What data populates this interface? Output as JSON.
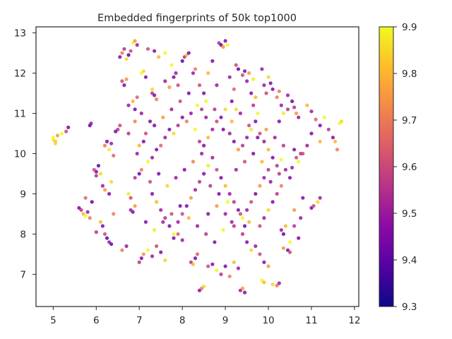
{
  "chart_data": {
    "type": "scatter",
    "title": "Embedded fingerprints of 50k top1000",
    "xlabel": "",
    "ylabel": "",
    "xlim": [
      4.6,
      12.1
    ],
    "ylim": [
      6.2,
      13.15
    ],
    "xticks": [
      5,
      6,
      7,
      8,
      9,
      10,
      11,
      12
    ],
    "yticks": [
      7,
      8,
      9,
      10,
      11,
      12,
      13
    ],
    "grid": false,
    "legend": "none",
    "colorbar": {
      "cmap": "plasma",
      "range": [
        9.3,
        9.9
      ],
      "ticks": [
        "9.3",
        "9.4",
        "9.5",
        "9.6",
        "9.7",
        "9.8",
        "9.9"
      ]
    },
    "points": [
      [
        5.0,
        10.35,
        9.88
      ],
      [
        5.05,
        10.3,
        9.82
      ],
      [
        5.1,
        10.45,
        9.75
      ],
      [
        5.2,
        10.5,
        9.9
      ],
      [
        5.3,
        10.55,
        9.6
      ],
      [
        5.35,
        10.65,
        9.45
      ],
      [
        5.0,
        10.4,
        9.9
      ],
      [
        5.05,
        10.25,
        9.85
      ],
      [
        5.65,
        8.6,
        9.55
      ],
      [
        5.7,
        8.5,
        9.8
      ],
      [
        5.75,
        8.45,
        9.9
      ],
      [
        5.8,
        8.55,
        9.5
      ],
      [
        5.85,
        8.4,
        9.7
      ],
      [
        5.9,
        8.8,
        9.4
      ],
      [
        5.75,
        8.9,
        9.65
      ],
      [
        5.6,
        8.65,
        9.45
      ],
      [
        5.85,
        10.7,
        9.4
      ],
      [
        5.88,
        10.75,
        9.5
      ],
      [
        6.0,
        9.55,
        9.45
      ],
      [
        5.95,
        9.6,
        9.6
      ],
      [
        6.05,
        9.7,
        9.4
      ],
      [
        6.1,
        9.5,
        9.85
      ],
      [
        6.0,
        9.45,
        9.55
      ],
      [
        6.2,
        10.2,
        9.7
      ],
      [
        6.25,
        10.3,
        9.45
      ],
      [
        6.3,
        10.1,
        9.88
      ],
      [
        6.35,
        10.25,
        9.5
      ],
      [
        6.4,
        9.95,
        9.65
      ],
      [
        6.45,
        10.55,
        9.42
      ],
      [
        6.5,
        10.6,
        9.55
      ],
      [
        6.55,
        10.7,
        9.6
      ],
      [
        6.15,
        9.2,
        9.5
      ],
      [
        6.2,
        9.1,
        9.75
      ],
      [
        6.3,
        9.0,
        9.45
      ],
      [
        6.35,
        9.3,
        9.85
      ],
      [
        6.1,
        8.3,
        9.8
      ],
      [
        6.15,
        8.2,
        9.45
      ],
      [
        6.2,
        8.0,
        9.6
      ],
      [
        6.25,
        7.9,
        9.4
      ],
      [
        6.3,
        7.8,
        9.5
      ],
      [
        6.35,
        7.75,
        9.42
      ],
      [
        6.4,
        8.5,
        9.7
      ],
      [
        6.0,
        8.05,
        9.55
      ],
      [
        6.55,
        12.4,
        9.45
      ],
      [
        6.6,
        12.5,
        9.7
      ],
      [
        6.65,
        12.6,
        9.55
      ],
      [
        6.7,
        12.35,
        9.85
      ],
      [
        6.75,
        12.45,
        9.4
      ],
      [
        6.8,
        12.55,
        9.6
      ],
      [
        6.6,
        11.8,
        9.6
      ],
      [
        6.65,
        11.7,
        9.45
      ],
      [
        6.7,
        11.85,
        9.75
      ],
      [
        6.75,
        11.2,
        9.5
      ],
      [
        6.85,
        11.3,
        9.8
      ],
      [
        6.9,
        11.1,
        9.42
      ],
      [
        6.95,
        11.4,
        9.65
      ],
      [
        6.85,
        12.75,
        9.9
      ],
      [
        6.9,
        12.8,
        9.75
      ],
      [
        6.95,
        12.7,
        9.5
      ],
      [
        7.1,
        12.05,
        9.85
      ],
      [
        7.05,
        12.0,
        9.9
      ],
      [
        7.15,
        11.9,
        9.45
      ],
      [
        7.3,
        11.5,
        9.55
      ],
      [
        7.35,
        11.45,
        9.45
      ],
      [
        7.4,
        11.35,
        9.7
      ],
      [
        7.3,
        11.6,
        9.85
      ],
      [
        7.2,
        12.6,
        9.6
      ],
      [
        7.35,
        12.55,
        9.45
      ],
      [
        7.45,
        12.4,
        9.8
      ],
      [
        7.6,
        12.5,
        9.9
      ],
      [
        7.6,
        11.8,
        9.5
      ],
      [
        7.7,
        11.65,
        9.75
      ],
      [
        7.8,
        11.9,
        9.45
      ],
      [
        7.9,
        11.7,
        9.6
      ],
      [
        7.75,
        12.2,
        9.9
      ],
      [
        7.85,
        12.0,
        9.5
      ],
      [
        8.0,
        12.3,
        9.4
      ],
      [
        8.05,
        12.4,
        9.55
      ],
      [
        8.1,
        12.45,
        9.8
      ],
      [
        8.15,
        12.5,
        9.45
      ],
      [
        8.3,
        12.1,
        9.7
      ],
      [
        8.25,
        12.0,
        9.5
      ],
      [
        8.4,
        11.7,
        9.6
      ],
      [
        8.5,
        11.5,
        9.45
      ],
      [
        8.55,
        11.3,
        9.9
      ],
      [
        8.45,
        11.1,
        9.55
      ],
      [
        8.7,
        12.3,
        9.45
      ],
      [
        8.6,
        12.0,
        9.8
      ],
      [
        8.8,
        11.7,
        9.5
      ],
      [
        8.85,
        12.75,
        9.55
      ],
      [
        8.9,
        12.7,
        9.42
      ],
      [
        8.95,
        12.65,
        9.75
      ],
      [
        9.0,
        12.8,
        9.45
      ],
      [
        9.05,
        12.7,
        9.9
      ],
      [
        9.1,
        11.9,
        9.5
      ],
      [
        9.2,
        11.6,
        9.65
      ],
      [
        9.15,
        11.3,
        9.45
      ],
      [
        9.25,
        11.1,
        9.85
      ],
      [
        9.3,
        12.1,
        9.4
      ],
      [
        9.4,
        11.95,
        9.6
      ],
      [
        9.5,
        11.8,
        9.5
      ],
      [
        9.55,
        12.0,
        9.75
      ],
      [
        9.6,
        11.5,
        9.45
      ],
      [
        9.7,
        11.4,
        9.8
      ],
      [
        9.65,
        11.2,
        9.55
      ],
      [
        9.75,
        11.0,
        9.9
      ],
      [
        9.9,
        11.7,
        9.5
      ],
      [
        9.95,
        11.5,
        9.6
      ],
      [
        10.0,
        11.9,
        9.85
      ],
      [
        10.1,
        11.6,
        9.45
      ],
      [
        10.2,
        11.4,
        9.7
      ],
      [
        10.3,
        11.2,
        9.5
      ],
      [
        10.35,
        11.0,
        9.88
      ],
      [
        10.25,
        10.8,
        9.45
      ],
      [
        10.45,
        11.1,
        9.55
      ],
      [
        10.55,
        11.3,
        9.42
      ],
      [
        10.65,
        11.0,
        9.75
      ],
      [
        10.7,
        10.9,
        9.5
      ],
      [
        10.9,
        11.2,
        9.8
      ],
      [
        11.0,
        11.05,
        9.5
      ],
      [
        11.1,
        10.85,
        9.65
      ],
      [
        11.2,
        10.7,
        9.45
      ],
      [
        11.3,
        10.9,
        9.9
      ],
      [
        11.4,
        10.6,
        9.55
      ],
      [
        11.5,
        10.4,
        9.45
      ],
      [
        11.55,
        10.3,
        9.8
      ],
      [
        11.6,
        10.1,
        9.7
      ],
      [
        11.65,
        10.75,
        9.9
      ],
      [
        11.7,
        10.8,
        9.85
      ],
      [
        10.6,
        10.1,
        9.45
      ],
      [
        10.65,
        9.9,
        9.6
      ],
      [
        10.7,
        9.8,
        9.9
      ],
      [
        10.55,
        9.65,
        9.5
      ],
      [
        10.75,
        10.0,
        9.55
      ],
      [
        11.0,
        8.65,
        9.45
      ],
      [
        11.05,
        8.7,
        9.6
      ],
      [
        11.15,
        8.8,
        9.85
      ],
      [
        11.2,
        8.9,
        9.5
      ],
      [
        10.3,
        8.1,
        9.5
      ],
      [
        10.35,
        8.0,
        9.42
      ],
      [
        10.4,
        8.2,
        9.8
      ],
      [
        10.45,
        7.6,
        9.45
      ],
      [
        10.5,
        7.55,
        9.6
      ],
      [
        10.35,
        7.65,
        9.75
      ],
      [
        10.1,
        6.75,
        9.85
      ],
      [
        10.2,
        6.72,
        9.7
      ],
      [
        10.25,
        6.78,
        9.5
      ],
      [
        9.85,
        6.85,
        9.9
      ],
      [
        9.9,
        6.8,
        9.8
      ],
      [
        9.35,
        6.6,
        9.5
      ],
      [
        9.4,
        6.65,
        9.75
      ],
      [
        9.45,
        6.55,
        9.45
      ],
      [
        8.4,
        6.6,
        9.45
      ],
      [
        8.45,
        6.65,
        9.7
      ],
      [
        8.5,
        6.7,
        9.85
      ],
      [
        8.2,
        7.3,
        9.55
      ],
      [
        8.25,
        7.25,
        9.8
      ],
      [
        8.3,
        7.4,
        9.45
      ],
      [
        8.35,
        7.5,
        9.65
      ],
      [
        7.0,
        7.3,
        9.55
      ],
      [
        7.05,
        7.4,
        9.45
      ],
      [
        7.1,
        7.5,
        9.75
      ],
      [
        7.2,
        7.6,
        9.9
      ],
      [
        7.3,
        7.45,
        9.5
      ],
      [
        7.4,
        7.7,
        9.6
      ],
      [
        7.5,
        7.55,
        9.45
      ],
      [
        7.6,
        7.35,
        9.85
      ],
      [
        6.6,
        7.6,
        9.7
      ],
      [
        6.7,
        7.7,
        9.5
      ],
      [
        7.8,
        7.9,
        9.45
      ],
      [
        7.9,
        8.0,
        9.65
      ],
      [
        8.0,
        7.85,
        9.5
      ],
      [
        8.6,
        7.2,
        9.6
      ],
      [
        8.7,
        7.25,
        9.45
      ],
      [
        8.8,
        7.1,
        9.9
      ],
      [
        8.9,
        7.0,
        9.55
      ],
      [
        9.0,
        7.2,
        9.45
      ],
      [
        9.2,
        7.3,
        9.8
      ],
      [
        9.3,
        7.15,
        9.5
      ],
      [
        9.1,
        6.95,
        9.7
      ],
      [
        9.5,
        7.8,
        9.45
      ],
      [
        9.6,
        7.6,
        9.85
      ],
      [
        9.7,
        7.7,
        9.5
      ],
      [
        9.8,
        7.5,
        9.6
      ],
      [
        9.9,
        7.3,
        9.45
      ],
      [
        10.0,
        7.2,
        9.75
      ],
      [
        9.4,
        8.0,
        9.55
      ],
      [
        9.45,
        8.2,
        9.42
      ],
      [
        9.55,
        8.3,
        9.8
      ],
      [
        6.8,
        8.6,
        9.5
      ],
      [
        6.85,
        8.55,
        9.45
      ],
      [
        6.9,
        8.7,
        9.75
      ],
      [
        6.8,
        8.9,
        9.6
      ],
      [
        6.75,
        9.0,
        9.88
      ],
      [
        6.9,
        9.4,
        9.55
      ],
      [
        7.0,
        9.5,
        9.42
      ],
      [
        7.05,
        9.6,
        9.7
      ],
      [
        6.95,
        10.0,
        9.5
      ],
      [
        7.0,
        10.2,
        9.8
      ],
      [
        7.1,
        10.3,
        9.45
      ],
      [
        7.15,
        10.5,
        9.6
      ],
      [
        7.2,
        9.8,
        9.9
      ],
      [
        7.3,
        9.9,
        9.5
      ],
      [
        7.4,
        10.1,
        9.45
      ],
      [
        7.5,
        10.2,
        9.65
      ],
      [
        7.6,
        10.4,
        9.5
      ],
      [
        7.7,
        10.6,
        9.45
      ],
      [
        7.8,
        10.5,
        9.85
      ],
      [
        7.9,
        10.7,
        9.55
      ],
      [
        8.0,
        10.9,
        9.45
      ],
      [
        8.1,
        10.8,
        9.7
      ],
      [
        8.2,
        11.0,
        9.5
      ],
      [
        8.3,
        10.6,
        9.9
      ],
      [
        8.4,
        10.3,
        9.55
      ],
      [
        8.5,
        10.2,
        9.45
      ],
      [
        8.6,
        10.4,
        9.8
      ],
      [
        8.7,
        10.6,
        9.5
      ],
      [
        8.8,
        10.8,
        9.6
      ],
      [
        8.9,
        10.9,
        9.45
      ],
      [
        9.0,
        11.1,
        9.85
      ],
      [
        9.1,
        10.5,
        9.5
      ],
      [
        9.2,
        10.3,
        9.45
      ],
      [
        9.3,
        10.1,
        9.75
      ],
      [
        9.4,
        10.2,
        9.55
      ],
      [
        9.5,
        10.4,
        9.5
      ],
      [
        9.6,
        10.6,
        9.88
      ],
      [
        9.7,
        10.8,
        9.45
      ],
      [
        9.8,
        10.5,
        9.6
      ],
      [
        9.9,
        10.3,
        9.5
      ],
      [
        10.0,
        10.1,
        9.8
      ],
      [
        10.1,
        9.9,
        9.45
      ],
      [
        10.2,
        9.7,
        9.55
      ],
      [
        10.3,
        9.85,
        9.9
      ],
      [
        10.4,
        9.6,
        9.5
      ],
      [
        10.5,
        9.4,
        9.45
      ],
      [
        10.3,
        9.2,
        9.7
      ],
      [
        10.2,
        9.0,
        9.55
      ],
      [
        10.1,
        8.8,
        9.45
      ],
      [
        10.0,
        8.6,
        9.85
      ],
      [
        9.9,
        8.4,
        9.5
      ],
      [
        9.8,
        8.2,
        9.6
      ],
      [
        7.3,
        9.0,
        9.45
      ],
      [
        7.4,
        8.8,
        9.8
      ],
      [
        7.5,
        8.6,
        9.5
      ],
      [
        7.6,
        8.4,
        9.55
      ],
      [
        7.7,
        8.2,
        9.45
      ],
      [
        7.8,
        8.0,
        9.9
      ],
      [
        7.9,
        8.3,
        9.5
      ],
      [
        8.0,
        8.5,
        9.6
      ],
      [
        8.1,
        8.7,
        9.45
      ],
      [
        8.2,
        8.9,
        9.75
      ],
      [
        8.3,
        9.1,
        9.5
      ],
      [
        8.4,
        9.3,
        9.55
      ],
      [
        8.5,
        9.5,
        9.45
      ],
      [
        8.6,
        9.7,
        9.88
      ],
      [
        8.7,
        9.9,
        9.5
      ],
      [
        8.8,
        9.6,
        9.6
      ],
      [
        8.9,
        9.4,
        9.45
      ],
      [
        9.0,
        9.2,
        9.8
      ],
      [
        9.1,
        9.0,
        9.5
      ],
      [
        9.2,
        8.8,
        9.55
      ],
      [
        9.3,
        8.6,
        9.45
      ],
      [
        9.4,
        8.4,
        9.9
      ],
      [
        9.5,
        8.6,
        9.5
      ],
      [
        9.6,
        8.8,
        9.6
      ],
      [
        9.7,
        9.0,
        9.45
      ],
      [
        9.8,
        9.2,
        9.75
      ],
      [
        9.9,
        9.4,
        9.5
      ],
      [
        10.0,
        9.6,
        9.55
      ],
      [
        7.25,
        9.3,
        9.6
      ],
      [
        7.45,
        9.5,
        9.45
      ],
      [
        7.65,
        9.2,
        9.85
      ],
      [
        7.85,
        9.4,
        9.5
      ],
      [
        8.05,
        9.6,
        9.45
      ],
      [
        8.25,
        9.8,
        9.7
      ],
      [
        8.45,
        10.0,
        9.5
      ],
      [
        8.65,
        9.2,
        9.55
      ],
      [
        8.85,
        9.0,
        9.45
      ],
      [
        9.05,
        8.8,
        9.9
      ],
      [
        9.25,
        9.6,
        9.5
      ],
      [
        9.45,
        9.8,
        9.6
      ],
      [
        9.65,
        10.0,
        9.45
      ],
      [
        9.85,
        9.8,
        9.8
      ],
      [
        10.05,
        9.3,
        9.5
      ],
      [
        10.25,
        9.5,
        9.55
      ],
      [
        7.35,
        10.7,
        9.45
      ],
      [
        7.55,
        10.9,
        9.75
      ],
      [
        7.75,
        11.1,
        9.5
      ],
      [
        7.95,
        11.3,
        9.6
      ],
      [
        8.15,
        11.5,
        9.45
      ],
      [
        8.35,
        11.2,
        9.9
      ],
      [
        8.55,
        10.9,
        9.5
      ],
      [
        8.75,
        11.1,
        9.55
      ],
      [
        8.95,
        10.6,
        9.45
      ],
      [
        9.15,
        10.8,
        9.8
      ],
      [
        9.35,
        11.0,
        9.5
      ],
      [
        9.55,
        10.7,
        9.6
      ],
      [
        9.75,
        10.4,
        9.45
      ],
      [
        9.95,
        10.6,
        9.75
      ],
      [
        10.15,
        10.4,
        9.5
      ],
      [
        10.35,
        10.2,
        9.55
      ],
      [
        7.15,
        8.3,
        9.45
      ],
      [
        7.35,
        8.1,
        9.88
      ],
      [
        7.55,
        8.3,
        9.5
      ],
      [
        7.75,
        8.5,
        9.6
      ],
      [
        7.95,
        8.7,
        9.45
      ],
      [
        8.15,
        8.4,
        9.8
      ],
      [
        8.35,
        8.2,
        9.5
      ],
      [
        8.55,
        8.0,
        9.55
      ],
      [
        8.75,
        7.8,
        9.45
      ],
      [
        8.95,
        8.1,
        9.9
      ],
      [
        9.15,
        8.3,
        9.5
      ],
      [
        9.35,
        8.5,
        9.6
      ],
      [
        8.6,
        8.5,
        9.45
      ],
      [
        8.8,
        8.7,
        9.75
      ],
      [
        9.0,
        8.5,
        9.5
      ],
      [
        9.2,
        8.2,
        9.55
      ],
      [
        7.05,
        11.0,
        9.5
      ],
      [
        7.25,
        10.8,
        9.45
      ],
      [
        6.9,
        10.8,
        9.7
      ],
      [
        6.75,
        10.5,
        9.55
      ],
      [
        9.25,
        12.2,
        9.6
      ],
      [
        9.45,
        12.05,
        9.45
      ],
      [
        9.65,
        11.85,
        9.88
      ],
      [
        9.85,
        12.1,
        9.5
      ],
      [
        10.05,
        11.75,
        9.45
      ],
      [
        10.25,
        11.55,
        9.7
      ],
      [
        10.45,
        11.45,
        9.5
      ],
      [
        10.6,
        11.15,
        9.55
      ],
      [
        11.0,
        10.5,
        9.45
      ],
      [
        11.2,
        10.3,
        9.8
      ],
      [
        10.9,
        10.2,
        9.5
      ],
      [
        10.8,
        10.0,
        9.6
      ],
      [
        10.8,
        8.9,
        9.45
      ],
      [
        10.6,
        8.6,
        9.75
      ],
      [
        10.75,
        8.4,
        9.5
      ],
      [
        10.6,
        8.2,
        9.55
      ],
      [
        10.7,
        7.9,
        9.45
      ],
      [
        10.5,
        7.8,
        9.9
      ]
    ]
  }
}
